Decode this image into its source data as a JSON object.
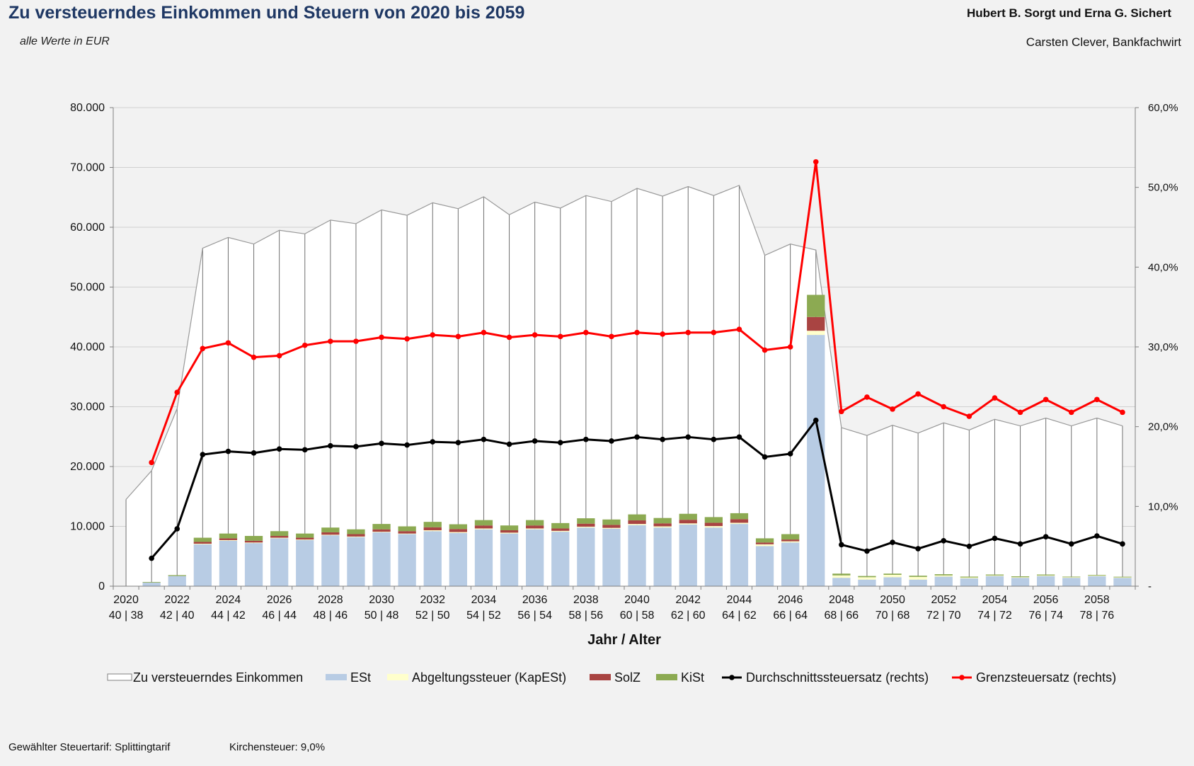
{
  "header": {
    "title": "Zu versteuerndes Einkommen und Steuern von 2020 bis 2059",
    "subtitle": "alle Werte in EUR",
    "client": "Hubert B. Sorgt und Erna G. Sichert",
    "advisor": "Carsten Clever, Bankfachwirt"
  },
  "footer": {
    "tarif": "Gewählter Steuertarif: Splittingtarif",
    "kirchensteuer": "Kirchensteuer: 9,0%"
  },
  "chart_data": {
    "type": "bar",
    "xlabel": "Jahr / Alter",
    "ylim": [
      0,
      80000
    ],
    "y_ticks": [
      "0",
      "10.000",
      "20.000",
      "30.000",
      "40.000",
      "50.000",
      "60.000",
      "70.000",
      "80.000"
    ],
    "y2lim": [
      0,
      0.6
    ],
    "y2_ticks": [
      "-",
      "10,0%",
      "20,0%",
      "30,0%",
      "40,0%",
      "50,0%",
      "60,0%"
    ],
    "x_tick_labels": [
      {
        "year": "2020",
        "age": "40 | 38"
      },
      {
        "year": "2022",
        "age": "42 | 40"
      },
      {
        "year": "2024",
        "age": "44 | 42"
      },
      {
        "year": "2026",
        "age": "46 | 44"
      },
      {
        "year": "2028",
        "age": "48 | 46"
      },
      {
        "year": "2030",
        "age": "50 | 48"
      },
      {
        "year": "2032",
        "age": "52 | 50"
      },
      {
        "year": "2034",
        "age": "54 | 52"
      },
      {
        "year": "2036",
        "age": "56 | 54"
      },
      {
        "year": "2038",
        "age": "58 | 56"
      },
      {
        "year": "2040",
        "age": "60 | 58"
      },
      {
        "year": "2042",
        "age": "62 | 60"
      },
      {
        "year": "2044",
        "age": "64 | 62"
      },
      {
        "year": "2046",
        "age": "66 | 64"
      },
      {
        "year": "2048",
        "age": "68 | 66"
      },
      {
        "year": "2050",
        "age": "70 | 68"
      },
      {
        "year": "2052",
        "age": "72 | 70"
      },
      {
        "year": "2054",
        "age": "74 | 72"
      },
      {
        "year": "2056",
        "age": "76 | 74"
      },
      {
        "year": "2058",
        "age": "78 | 76"
      }
    ],
    "years": [
      2020,
      2021,
      2022,
      2023,
      2024,
      2025,
      2026,
      2027,
      2028,
      2029,
      2030,
      2031,
      2032,
      2033,
      2034,
      2035,
      2036,
      2037,
      2038,
      2039,
      2040,
      2041,
      2042,
      2043,
      2044,
      2045,
      2046,
      2047,
      2048,
      2049,
      2050,
      2051,
      2052,
      2053,
      2054,
      2055,
      2056,
      2057,
      2058,
      2059
    ],
    "series": [
      {
        "name": "Zu versteuerndes Einkommen",
        "kind": "area",
        "color": "#ffffff",
        "border": "#999999",
        "values": [
          14500,
          19300,
          29700,
          56500,
          58300,
          57200,
          59500,
          58900,
          61200,
          60600,
          62900,
          62000,
          64100,
          63100,
          65100,
          62100,
          64200,
          63200,
          65300,
          64300,
          66500,
          65200,
          66800,
          65300,
          67000,
          55300,
          57200,
          56200,
          26500,
          25200,
          26900,
          25600,
          27300,
          26100,
          27900,
          26800,
          28100,
          26800,
          28100,
          26800
        ]
      },
      {
        "name": "ESt",
        "kind": "bar",
        "color": "#b8cce4",
        "values": [
          0,
          600,
          1700,
          7000,
          7600,
          7200,
          8000,
          7700,
          8500,
          8200,
          9000,
          8700,
          9200,
          8900,
          9500,
          8800,
          9500,
          9100,
          9800,
          9600,
          10200,
          9800,
          10300,
          9800,
          10400,
          6700,
          7300,
          42000,
          1400,
          1100,
          1500,
          1100,
          1600,
          1300,
          1700,
          1400,
          1700,
          1400,
          1700,
          1400
        ]
      },
      {
        "name": "Abgeltungssteuer (KapESt)",
        "kind": "bar",
        "color": "#ffffcc",
        "values": [
          0,
          0,
          0,
          100,
          100,
          100,
          100,
          100,
          100,
          100,
          100,
          100,
          150,
          150,
          150,
          150,
          150,
          150,
          150,
          150,
          200,
          200,
          200,
          250,
          200,
          300,
          200,
          700,
          400,
          400,
          400,
          450,
          200,
          150,
          100,
          100,
          100,
          100,
          80,
          80
        ]
      },
      {
        "name": "SolZ",
        "kind": "bar",
        "color": "#a94442",
        "values": [
          0,
          0,
          0,
          300,
          300,
          300,
          300,
          300,
          400,
          400,
          400,
          400,
          500,
          500,
          500,
          400,
          500,
          400,
          500,
          500,
          600,
          500,
          600,
          550,
          600,
          300,
          300,
          2300,
          0,
          0,
          0,
          0,
          0,
          0,
          0,
          0,
          0,
          0,
          0,
          0
        ]
      },
      {
        "name": "KiSt",
        "kind": "bar",
        "color": "#8caa52",
        "values": [
          0,
          100,
          150,
          700,
          800,
          800,
          800,
          700,
          800,
          800,
          900,
          800,
          900,
          800,
          900,
          800,
          900,
          900,
          900,
          900,
          1000,
          900,
          1000,
          950,
          1000,
          700,
          900,
          3700,
          300,
          200,
          200,
          200,
          200,
          150,
          150,
          150,
          150,
          100,
          100,
          100
        ]
      },
      {
        "name": "Durchschnittssteuersatz (rechts)",
        "kind": "line",
        "color": "#000000",
        "values": [
          null,
          0.035,
          0.072,
          0.165,
          0.169,
          0.167,
          0.172,
          0.171,
          0.176,
          0.175,
          0.179,
          0.177,
          0.181,
          0.18,
          0.184,
          0.178,
          0.182,
          0.18,
          0.184,
          0.182,
          0.187,
          0.184,
          0.187,
          0.184,
          0.187,
          0.162,
          0.166,
          0.208,
          0.052,
          0.044,
          0.055,
          0.047,
          0.057,
          0.05,
          0.06,
          0.053,
          0.062,
          0.053,
          0.063,
          0.053
        ]
      },
      {
        "name": "Grenzsteuersatz (rechts)",
        "kind": "line",
        "color": "#ff0000",
        "values": [
          null,
          0.155,
          0.243,
          0.298,
          0.305,
          0.287,
          0.289,
          0.302,
          0.307,
          0.307,
          0.312,
          0.31,
          0.315,
          0.313,
          0.318,
          0.312,
          0.315,
          0.313,
          0.318,
          0.313,
          0.318,
          0.316,
          0.318,
          0.318,
          0.322,
          0.296,
          0.3,
          0.532,
          0.219,
          0.237,
          0.222,
          0.241,
          0.225,
          0.213,
          0.236,
          0.218,
          0.234,
          0.218,
          0.234,
          0.218
        ]
      }
    ]
  }
}
